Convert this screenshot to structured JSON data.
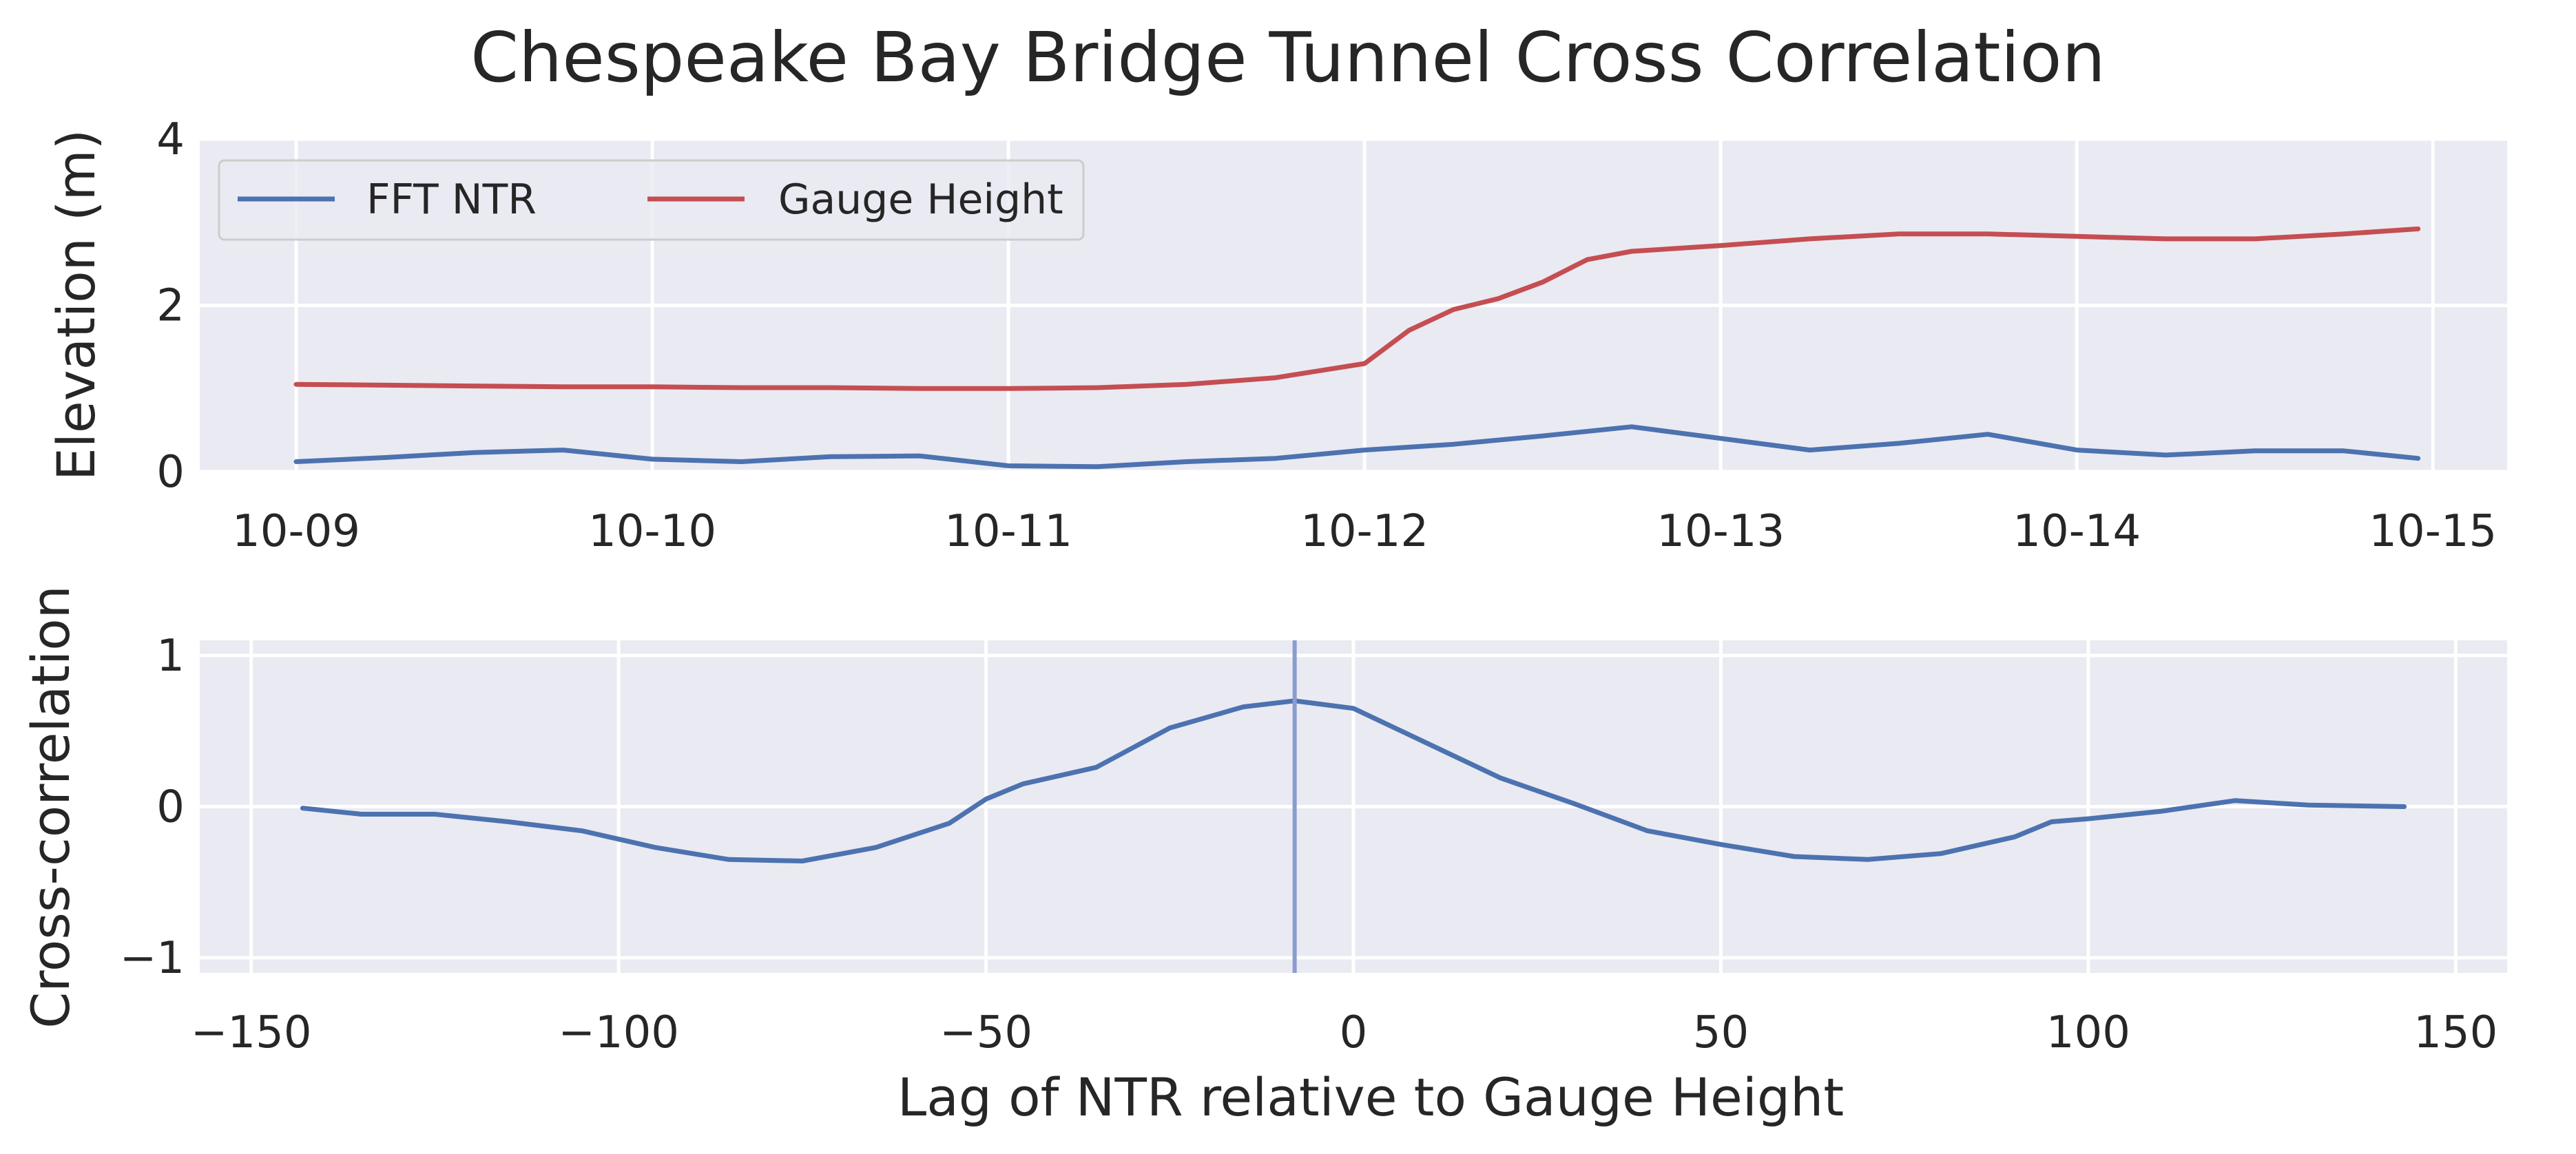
{
  "figure": {
    "title": "Chespeake Bay Bridge Tunnel Cross Correlation"
  },
  "colors": {
    "background": "#ffffff",
    "plot_background": "#eaeaf2",
    "grid": "#ffffff",
    "fft_ntr": "#4c72b0",
    "gauge_height": "#c44e52",
    "lag_marker": "#8a9ccf"
  },
  "chart_data": [
    {
      "type": "line",
      "xlabel": "",
      "ylabel": "Elevation (m)",
      "x_type": "date",
      "xlim": [
        "2012-10-08T17:30",
        "2012-10-15T05:00"
      ],
      "ylim": [
        0,
        4
      ],
      "x_ticks": [
        "2012-10-09",
        "2012-10-10",
        "2012-10-11",
        "2012-10-12",
        "2012-10-13",
        "2012-10-14",
        "2012-10-15"
      ],
      "x_tick_labels": [
        "10-09",
        "10-10",
        "10-11",
        "10-12",
        "10-13",
        "10-14",
        "10-15"
      ],
      "y_ticks": [
        0,
        2,
        4
      ],
      "y_tick_labels": [
        "0",
        "2",
        "4"
      ],
      "grid": true,
      "legend": {
        "placement": "upper-left",
        "columns": 2
      },
      "series": [
        {
          "name": "FFT NTR",
          "color": "#4c72b0",
          "points": [
            [
              "2012-10-09T00:00",
              0.12
            ],
            [
              "2012-10-09T06:00",
              0.17
            ],
            [
              "2012-10-09T12:00",
              0.23
            ],
            [
              "2012-10-09T18:00",
              0.26
            ],
            [
              "2012-10-10T00:00",
              0.15
            ],
            [
              "2012-10-10T06:00",
              0.12
            ],
            [
              "2012-10-10T12:00",
              0.18
            ],
            [
              "2012-10-10T18:00",
              0.19
            ],
            [
              "2012-10-11T00:00",
              0.07
            ],
            [
              "2012-10-11T06:00",
              0.06
            ],
            [
              "2012-10-11T12:00",
              0.12
            ],
            [
              "2012-10-11T18:00",
              0.16
            ],
            [
              "2012-10-12T00:00",
              0.26
            ],
            [
              "2012-10-12T06:00",
              0.33
            ],
            [
              "2012-10-12T12:00",
              0.43
            ],
            [
              "2012-10-12T18:00",
              0.54
            ],
            [
              "2012-10-13T00:00",
              0.4
            ],
            [
              "2012-10-13T06:00",
              0.26
            ],
            [
              "2012-10-13T12:00",
              0.34
            ],
            [
              "2012-10-13T18:00",
              0.45
            ],
            [
              "2012-10-14T00:00",
              0.26
            ],
            [
              "2012-10-14T06:00",
              0.2
            ],
            [
              "2012-10-14T12:00",
              0.25
            ],
            [
              "2012-10-14T18:00",
              0.25
            ],
            [
              "2012-10-14T23:00",
              0.16
            ]
          ]
        },
        {
          "name": "Gauge Height",
          "color": "#c44e52",
          "points": [
            [
              "2012-10-09T00:00",
              1.05
            ],
            [
              "2012-10-09T06:00",
              1.04
            ],
            [
              "2012-10-09T12:00",
              1.03
            ],
            [
              "2012-10-09T18:00",
              1.02
            ],
            [
              "2012-10-10T00:00",
              1.02
            ],
            [
              "2012-10-10T06:00",
              1.01
            ],
            [
              "2012-10-10T12:00",
              1.01
            ],
            [
              "2012-10-10T18:00",
              1.0
            ],
            [
              "2012-10-11T00:00",
              1.0
            ],
            [
              "2012-10-11T06:00",
              1.01
            ],
            [
              "2012-10-11T12:00",
              1.05
            ],
            [
              "2012-10-11T18:00",
              1.13
            ],
            [
              "2012-10-12T00:00",
              1.3
            ],
            [
              "2012-10-12T03:00",
              1.7
            ],
            [
              "2012-10-12T06:00",
              1.95
            ],
            [
              "2012-10-12T09:00",
              2.08
            ],
            [
              "2012-10-12T12:00",
              2.28
            ],
            [
              "2012-10-12T15:00",
              2.55
            ],
            [
              "2012-10-12T18:00",
              2.65
            ],
            [
              "2012-10-13T00:00",
              2.72
            ],
            [
              "2012-10-13T06:00",
              2.8
            ],
            [
              "2012-10-13T12:00",
              2.86
            ],
            [
              "2012-10-13T18:00",
              2.86
            ],
            [
              "2012-10-14T00:00",
              2.83
            ],
            [
              "2012-10-14T06:00",
              2.8
            ],
            [
              "2012-10-14T12:00",
              2.8
            ],
            [
              "2012-10-14T18:00",
              2.86
            ],
            [
              "2012-10-14T23:00",
              2.92
            ]
          ]
        }
      ]
    },
    {
      "type": "line",
      "xlabel": "Lag of NTR relative to Gauge Height",
      "ylabel": "Cross-correlation",
      "xlim": [
        -157,
        157
      ],
      "ylim": [
        -1.1,
        1.1
      ],
      "x_ticks": [
        -150,
        -100,
        -50,
        0,
        50,
        100,
        150
      ],
      "x_tick_labels": [
        "−150",
        "−100",
        "−50",
        "0",
        "50",
        "100",
        "150"
      ],
      "y_ticks": [
        -1,
        0,
        1
      ],
      "y_tick_labels": [
        "−1",
        "0",
        "1"
      ],
      "grid": true,
      "vertical_line_x": -8,
      "series": [
        {
          "color": "#4c72b0",
          "x": [
            -143,
            -135,
            -125,
            -115,
            -105,
            -95,
            -85,
            -75,
            -65,
            -55,
            -50,
            -45,
            -35,
            -25,
            -15,
            -8,
            0,
            10,
            20,
            30,
            40,
            50,
            60,
            70,
            80,
            90,
            95,
            100,
            110,
            120,
            130,
            143
          ],
          "y": [
            -0.01,
            -0.05,
            -0.05,
            -0.1,
            -0.16,
            -0.27,
            -0.35,
            -0.36,
            -0.27,
            -0.11,
            0.05,
            0.15,
            0.26,
            0.52,
            0.66,
            0.7,
            0.65,
            0.42,
            0.19,
            0.02,
            -0.16,
            -0.25,
            -0.33,
            -0.35,
            -0.31,
            -0.2,
            -0.1,
            -0.08,
            -0.03,
            0.04,
            0.01,
            0.0
          ]
        }
      ]
    }
  ]
}
